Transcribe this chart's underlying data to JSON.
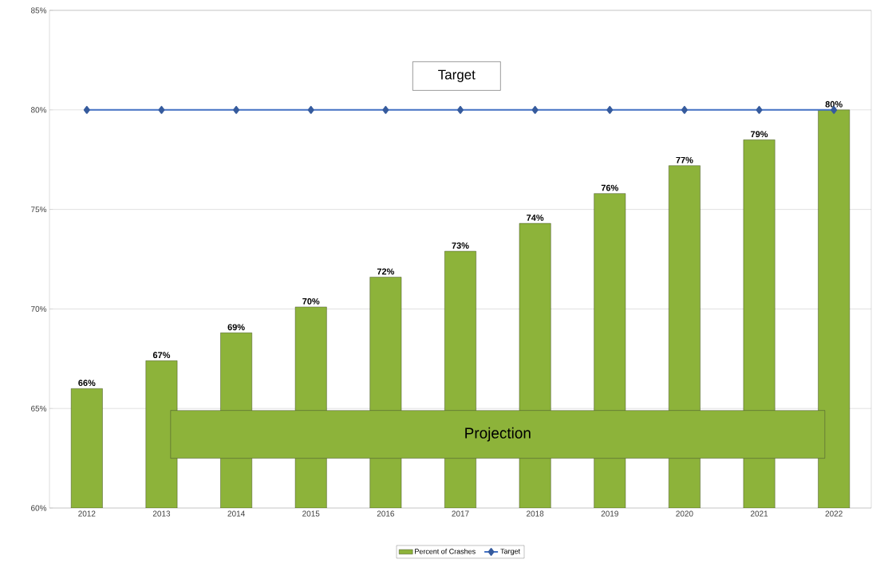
{
  "chart_data": {
    "type": "bar",
    "categories": [
      "2012",
      "2013",
      "2014",
      "2015",
      "2016",
      "2017",
      "2018",
      "2019",
      "2020",
      "2021",
      "2022"
    ],
    "series": [
      {
        "name": "Percent of Crashes",
        "color": "#8db33a",
        "values": [
          66.0,
          67.4,
          68.8,
          70.1,
          71.6,
          72.9,
          74.3,
          75.8,
          77.2,
          78.5,
          80.0
        ],
        "value_labels": [
          "66%",
          "67%",
          "69%",
          "70%",
          "72%",
          "73%",
          "74%",
          "76%",
          "77%",
          "79%",
          "80%"
        ]
      },
      {
        "name": "Target",
        "type": "line",
        "color": "#4472c4",
        "marker": "diamond",
        "values": [
          80,
          80,
          80,
          80,
          80,
          80,
          80,
          80,
          80,
          80,
          80
        ]
      }
    ],
    "ylim": [
      60,
      85
    ],
    "yticks": [
      {
        "value": 60,
        "label": "60%"
      },
      {
        "value": 65,
        "label": "65%"
      },
      {
        "value": 70,
        "label": "70%"
      },
      {
        "value": 75,
        "label": "75%"
      },
      {
        "value": 80,
        "label": "80%"
      },
      {
        "value": 85,
        "label": "85%"
      }
    ],
    "grid": "y",
    "legend": "bottom",
    "annotations": [
      "Target",
      "Projection"
    ]
  }
}
